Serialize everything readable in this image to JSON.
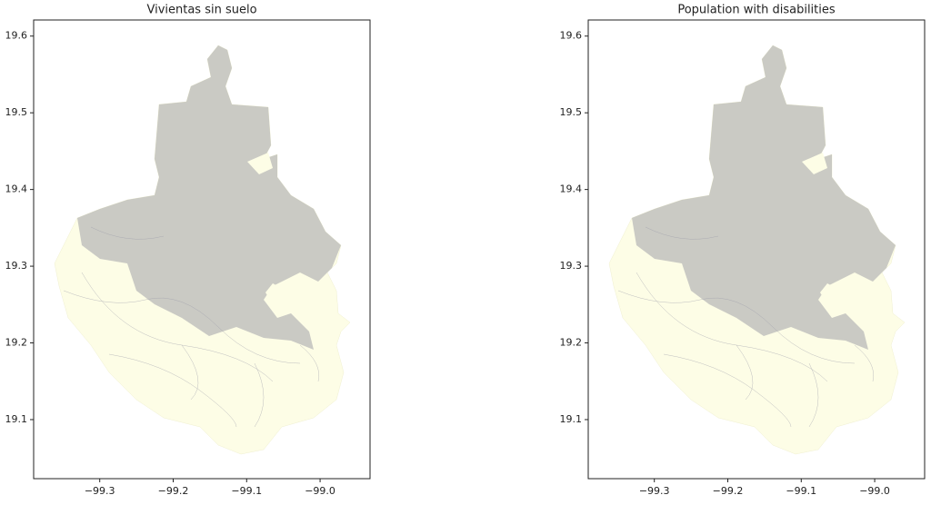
{
  "chart_data": [
    {
      "type": "map",
      "title": "Vivientas sin suelo",
      "xlim": [
        -99.39,
        -98.932
      ],
      "ylim": [
        19.023,
        19.621
      ],
      "xticks": [
        {
          "value": -99.3,
          "label": "−99.3"
        },
        {
          "value": -99.2,
          "label": "−99.2"
        },
        {
          "value": -99.1,
          "label": "−99.1"
        },
        {
          "value": -99.0,
          "label": "−99.0"
        }
      ],
      "yticks": [
        19.1,
        19.2,
        19.3,
        19.4,
        19.5,
        19.6
      ]
    },
    {
      "type": "map",
      "title": "Population with disabilities",
      "xlim": [
        -99.39,
        -98.932
      ],
      "ylim": [
        19.023,
        19.621
      ],
      "xticks": [
        {
          "value": -99.3,
          "label": "−99.3"
        },
        {
          "value": -99.2,
          "label": "−99.2"
        },
        {
          "value": -99.1,
          "label": "−99.1"
        },
        {
          "value": -99.0,
          "label": "−99.0"
        }
      ],
      "yticks": [
        19.1,
        19.2,
        19.3,
        19.4,
        19.5,
        19.6
      ]
    }
  ]
}
